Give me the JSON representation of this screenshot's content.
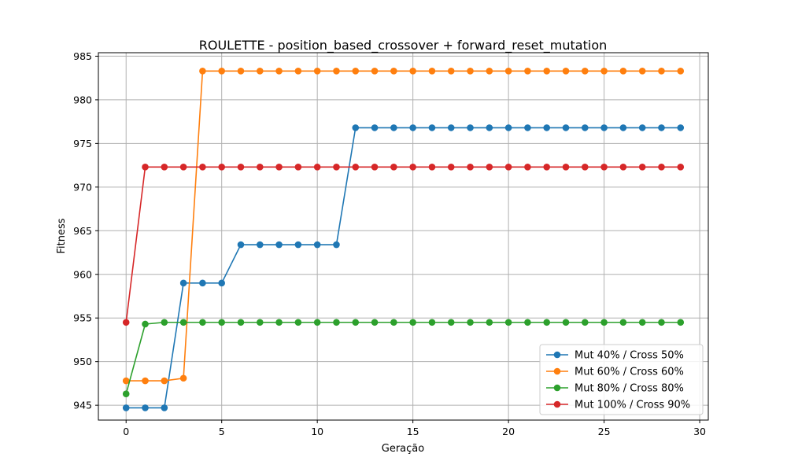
{
  "chart_data": {
    "type": "line",
    "title": "ROULETTE - position_based_crossover + forward_reset_mutation",
    "xlabel": "Geração",
    "ylabel": "Fitness",
    "xlim": [
      -1.45,
      30.45
    ],
    "ylim": [
      943.3,
      985.4
    ],
    "xticks": [
      0,
      5,
      10,
      15,
      20,
      25,
      30
    ],
    "yticks": [
      945,
      950,
      955,
      960,
      965,
      970,
      975,
      980,
      985
    ],
    "grid": true,
    "legend_position": "lower-right",
    "x": [
      0,
      1,
      2,
      3,
      4,
      5,
      6,
      7,
      8,
      9,
      10,
      11,
      12,
      13,
      14,
      15,
      16,
      17,
      18,
      19,
      20,
      21,
      22,
      23,
      24,
      25,
      26,
      27,
      28,
      29
    ],
    "series": [
      {
        "name": "Mut 40% / Cross 50%",
        "color": "#1f77b4",
        "values": [
          944.7,
          944.7,
          944.7,
          959.0,
          959.0,
          959.0,
          963.4,
          963.4,
          963.4,
          963.4,
          963.4,
          963.4,
          976.8,
          976.8,
          976.8,
          976.8,
          976.8,
          976.8,
          976.8,
          976.8,
          976.8,
          976.8,
          976.8,
          976.8,
          976.8,
          976.8,
          976.8,
          976.8,
          976.8,
          976.8
        ]
      },
      {
        "name": "Mut 60% / Cross 60%",
        "color": "#ff7f0e",
        "values": [
          947.8,
          947.8,
          947.8,
          948.1,
          983.3,
          983.3,
          983.3,
          983.3,
          983.3,
          983.3,
          983.3,
          983.3,
          983.3,
          983.3,
          983.3,
          983.3,
          983.3,
          983.3,
          983.3,
          983.3,
          983.3,
          983.3,
          983.3,
          983.3,
          983.3,
          983.3,
          983.3,
          983.3,
          983.3,
          983.3
        ]
      },
      {
        "name": "Mut 80% / Cross 80%",
        "color": "#2ca02c",
        "values": [
          946.3,
          954.3,
          954.5,
          954.5,
          954.5,
          954.5,
          954.5,
          954.5,
          954.5,
          954.5,
          954.5,
          954.5,
          954.5,
          954.5,
          954.5,
          954.5,
          954.5,
          954.5,
          954.5,
          954.5,
          954.5,
          954.5,
          954.5,
          954.5,
          954.5,
          954.5,
          954.5,
          954.5,
          954.5,
          954.5
        ]
      },
      {
        "name": "Mut 100% / Cross 90%",
        "color": "#d62728",
        "values": [
          954.5,
          972.3,
          972.3,
          972.3,
          972.3,
          972.3,
          972.3,
          972.3,
          972.3,
          972.3,
          972.3,
          972.3,
          972.3,
          972.3,
          972.3,
          972.3,
          972.3,
          972.3,
          972.3,
          972.3,
          972.3,
          972.3,
          972.3,
          972.3,
          972.3,
          972.3,
          972.3,
          972.3,
          972.3,
          972.3
        ]
      }
    ]
  }
}
